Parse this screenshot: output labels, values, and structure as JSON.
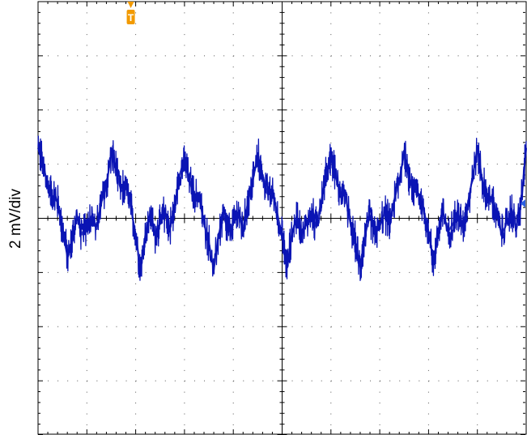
{
  "chart_data": {
    "type": "line",
    "ylabel": "2 mV/div",
    "grid": true,
    "x_divisions": 10,
    "y_divisions": 8,
    "ylim": [
      -8,
      8
    ],
    "trigger_marker": "T",
    "trigger_x_div": 1.9,
    "colors": {
      "trace": "#0a14b4",
      "trigger": "#f29a00",
      "ref_marker": "#2b5fe0",
      "grid": "#555555",
      "axis": "#000000"
    },
    "series": [
      {
        "x": [
          0.0,
          0.1,
          0.2,
          0.3,
          0.4,
          0.5,
          0.6,
          0.7,
          0.8,
          0.9,
          1.0,
          1.1,
          1.2,
          1.3,
          1.4,
          1.5,
          1.6,
          1.7,
          1.8,
          1.9,
          2.0,
          2.1,
          2.2,
          2.3,
          2.4,
          2.5,
          2.6,
          2.7,
          2.8,
          2.9,
          3.0,
          3.1,
          3.2,
          3.3,
          3.4,
          3.5,
          3.6,
          3.7,
          3.8,
          3.9,
          4.0,
          4.1,
          4.2,
          4.3,
          4.4,
          4.5,
          4.6,
          4.7,
          4.8,
          4.9,
          5.0,
          5.1,
          5.2,
          5.3,
          5.4,
          5.5,
          5.6,
          5.7,
          5.8,
          5.9,
          6.0,
          6.1,
          6.2,
          6.3,
          6.4,
          6.5,
          6.6,
          6.7,
          6.8,
          6.9,
          7.0,
          7.1,
          7.2,
          7.3,
          7.4,
          7.5,
          7.6,
          7.7,
          7.8,
          7.9,
          8.0,
          8.1,
          8.2,
          8.3,
          8.4,
          8.5,
          8.6,
          8.7,
          8.8,
          8.9,
          9.0,
          9.1,
          9.2,
          9.3,
          9.4,
          9.5,
          9.6,
          9.7,
          9.8,
          9.9,
          10.0
        ],
        "values": [
          2.6,
          2.0,
          1.2,
          0.8,
          0.6,
          -0.4,
          -1.4,
          -0.8,
          0.1,
          -0.6,
          -0.2,
          0.1,
          -0.4,
          0.6,
          1.2,
          2.4,
          1.8,
          1.0,
          1.2,
          0.4,
          -0.6,
          -1.9,
          -0.6,
          0.2,
          -0.6,
          -0.2,
          0.2,
          -0.4,
          0.4,
          1.6,
          2.2,
          1.4,
          0.8,
          0.8,
          -0.2,
          -0.9,
          -1.9,
          -0.6,
          0.1,
          -0.5,
          -0.2,
          0.2,
          -0.4,
          0.6,
          1.4,
          2.3,
          1.6,
          0.9,
          1.0,
          0.2,
          -0.7,
          -1.8,
          -0.6,
          0.1,
          -0.5,
          -0.2,
          0.2,
          -0.3,
          0.6,
          1.6,
          2.3,
          1.5,
          0.9,
          0.8,
          -0.2,
          -0.9,
          -1.8,
          -0.6,
          0.1,
          -0.6,
          -0.3,
          0.2,
          -0.2,
          0.7,
          1.4,
          2.4,
          1.5,
          1.0,
          0.9,
          0.3,
          -0.5,
          -1.6,
          -0.5,
          0.2,
          -0.5,
          -0.2,
          0.2,
          -0.3,
          0.5,
          1.5,
          2.6,
          1.4,
          0.8,
          0.6,
          0.1,
          -0.6,
          -0.2,
          0.3,
          -0.4,
          0.6,
          2.6
        ]
      }
    ]
  }
}
